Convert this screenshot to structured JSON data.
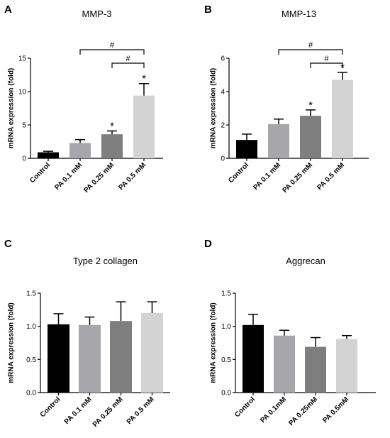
{
  "chart_data": [
    {
      "type": "bar",
      "panel": "A",
      "title": "MMP-3",
      "ylabel": "mRNA expression (fold)",
      "categories": [
        "Control",
        "PA 0.1 mM",
        "PA 0.25 mM",
        "PA 0.5 mM"
      ],
      "values": [
        0.9,
        2.3,
        3.6,
        9.4
      ],
      "errors": [
        0.15,
        0.5,
        0.5,
        1.8
      ],
      "colors": [
        "#000000",
        "#a7a7ab",
        "#7e7e7e",
        "#d3d3d3"
      ],
      "ylim": [
        0,
        15
      ],
      "yticks": [
        "0",
        "5",
        "10",
        "15"
      ],
      "significance": [
        "",
        "",
        "*",
        "*"
      ],
      "brackets": [
        {
          "from": 1,
          "to": 3,
          "label": "#"
        },
        {
          "from": 2,
          "to": 3,
          "label": "#"
        }
      ]
    },
    {
      "type": "bar",
      "panel": "B",
      "title": "MMP-13",
      "ylabel": "mRNA expression (fold)",
      "categories": [
        "Control",
        "PA 0.1 mM",
        "PA 0.25 mM",
        "PA 0.5 mM"
      ],
      "values": [
        1.1,
        2.05,
        2.55,
        4.7
      ],
      "errors": [
        0.35,
        0.3,
        0.35,
        0.45
      ],
      "colors": [
        "#000000",
        "#a7a7ab",
        "#7e7e7e",
        "#d3d3d3"
      ],
      "ylim": [
        0,
        6
      ],
      "yticks": [
        "0",
        "2",
        "4",
        "6"
      ],
      "significance": [
        "",
        "",
        "*",
        "*"
      ],
      "brackets": [
        {
          "from": 1,
          "to": 3,
          "label": "#"
        },
        {
          "from": 2,
          "to": 3,
          "label": "#"
        }
      ]
    },
    {
      "type": "bar",
      "panel": "C",
      "title": "Type 2 collagen",
      "ylabel": "mRNA expression (fold)",
      "categories": [
        "Control",
        "PA 0.1 mM",
        "PA 0.25 mM",
        "PA 0.5 mM"
      ],
      "values": [
        1.03,
        1.02,
        1.08,
        1.2
      ],
      "errors": [
        0.16,
        0.12,
        0.29,
        0.17
      ],
      "colors": [
        "#000000",
        "#a7a7ab",
        "#7e7e7e",
        "#d3d3d3"
      ],
      "ylim": [
        0,
        1.5
      ],
      "yticks": [
        "0.0",
        "0.5",
        "1.0",
        "1.5"
      ],
      "significance": [
        "",
        "",
        "",
        ""
      ],
      "brackets": []
    },
    {
      "type": "bar",
      "panel": "D",
      "title": "Aggrecan",
      "ylabel": "mRNA expression (fold)",
      "categories": [
        "Control",
        "PA 0.1mM",
        "PA 0.25mM",
        "PA 0.5mM"
      ],
      "values": [
        1.02,
        0.86,
        0.69,
        0.81
      ],
      "errors": [
        0.16,
        0.08,
        0.14,
        0.05
      ],
      "colors": [
        "#000000",
        "#a7a7ab",
        "#7e7e7e",
        "#d3d3d3"
      ],
      "ylim": [
        0,
        1.5
      ],
      "yticks": [
        "0.0",
        "0.5",
        "1.0",
        "1.5"
      ],
      "significance": [
        "",
        "",
        "",
        ""
      ],
      "brackets": []
    }
  ]
}
